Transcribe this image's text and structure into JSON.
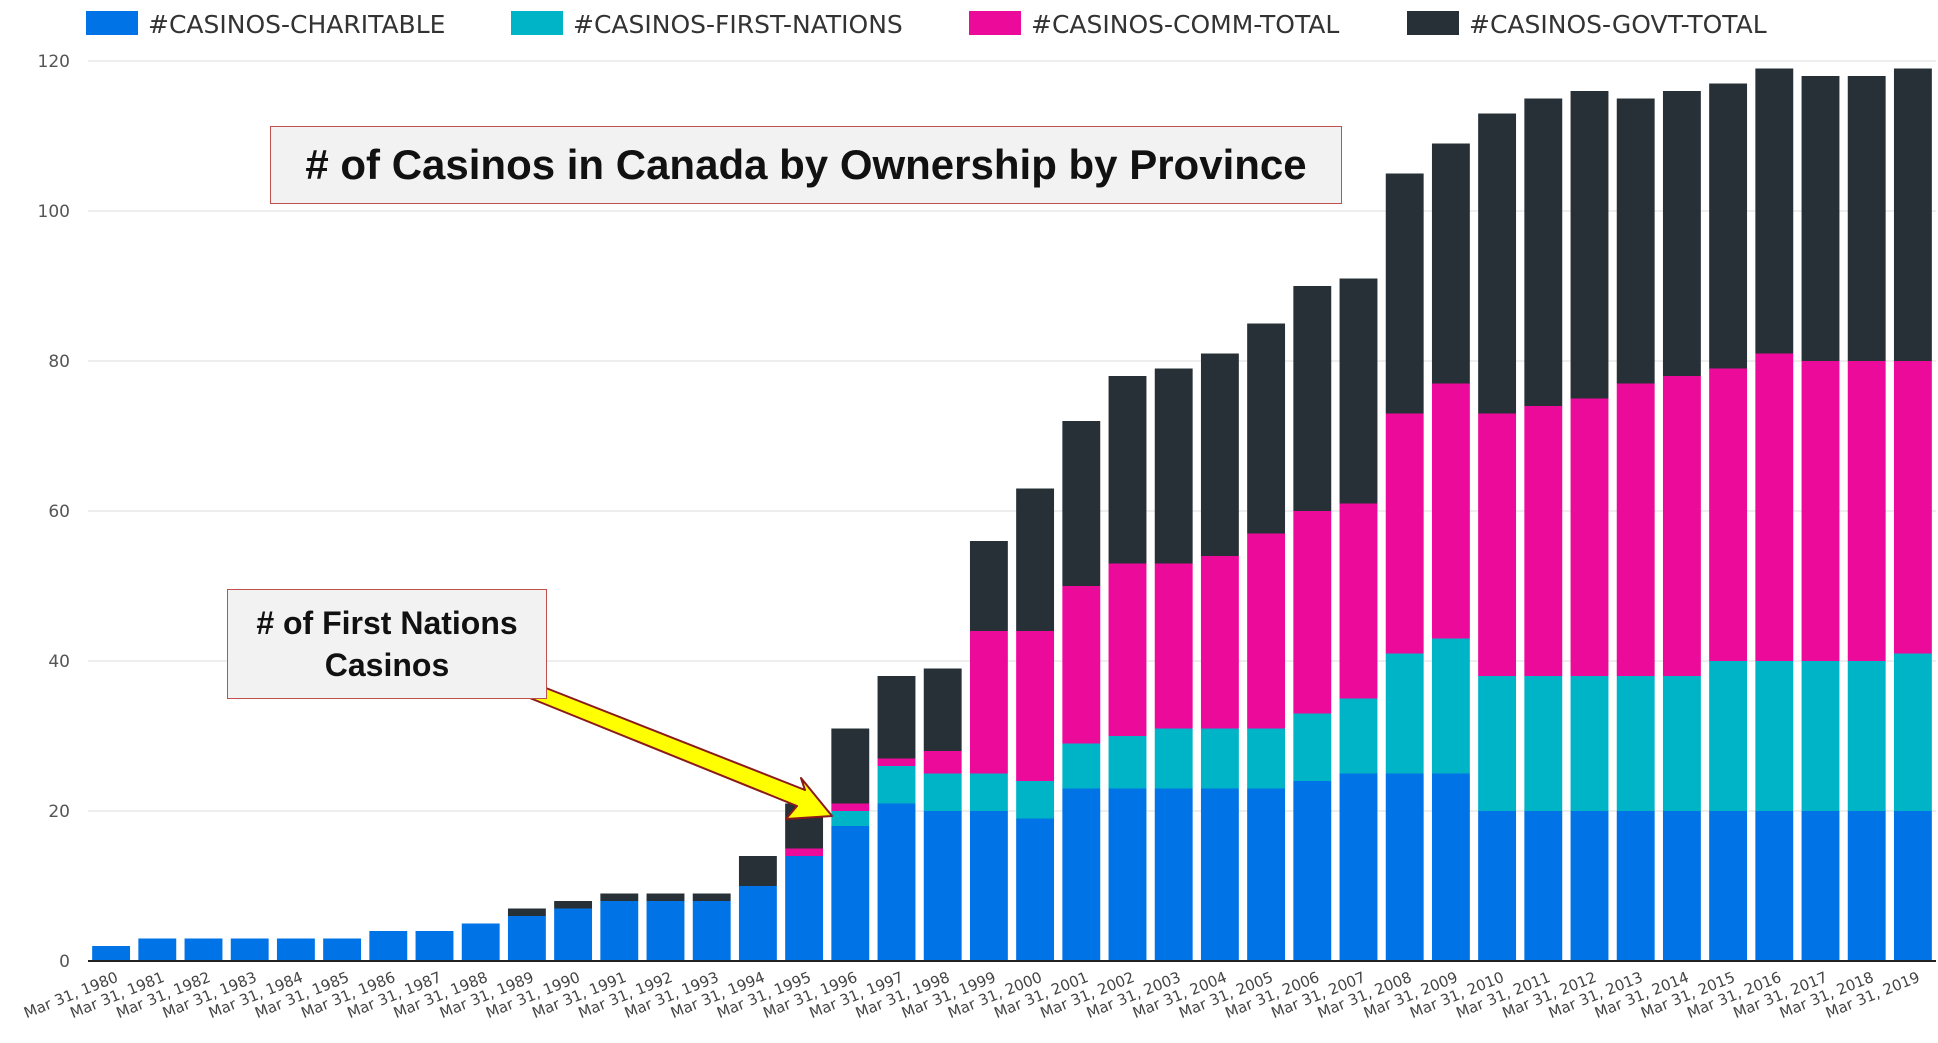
{
  "chart_data": {
    "type": "bar",
    "stacked": true,
    "title": "# of Casinos in Canada by Ownership by Province",
    "annotation": "# of First Nations Casinos",
    "ylim": [
      0,
      120
    ],
    "yticks": [
      0,
      20,
      40,
      60,
      80,
      100,
      120
    ],
    "grid": true,
    "legend": "top-left",
    "categories": [
      "Mar 31, 1980",
      "Mar 31, 1981",
      "Mar 31, 1982",
      "Mar 31, 1983",
      "Mar 31, 1984",
      "Mar 31, 1985",
      "Mar 31, 1986",
      "Mar 31, 1987",
      "Mar 31, 1988",
      "Mar 31, 1989",
      "Mar 31, 1990",
      "Mar 31, 1991",
      "Mar 31, 1992",
      "Mar 31, 1993",
      "Mar 31, 1994",
      "Mar 31, 1995",
      "Mar 31, 1996",
      "Mar 31, 1997",
      "Mar 31, 1998",
      "Mar 31, 1999",
      "Mar 31, 2000",
      "Mar 31, 2001",
      "Mar 31, 2002",
      "Mar 31, 2003",
      "Mar 31, 2004",
      "Mar 31, 2005",
      "Mar 31, 2006",
      "Mar 31, 2007",
      "Mar 31, 2008",
      "Mar 31, 2009",
      "Mar 31, 2010",
      "Mar 31, 2011",
      "Mar 31, 2012",
      "Mar 31, 2013",
      "Mar 31, 2014",
      "Mar 31, 2015",
      "Mar 31, 2016",
      "Mar 31, 2017",
      "Mar 31, 2018",
      "Mar 31, 2019"
    ],
    "series": [
      {
        "name": "#CASINOS-CHARITABLE",
        "color": "#0073e6",
        "values": [
          2,
          3,
          3,
          3,
          3,
          3,
          4,
          4,
          5,
          6,
          7,
          8,
          8,
          8,
          10,
          14,
          18,
          21,
          20,
          20,
          19,
          23,
          23,
          23,
          23,
          23,
          24,
          25,
          25,
          25,
          20,
          20,
          20,
          20,
          20,
          20,
          20,
          20,
          20,
          20
        ]
      },
      {
        "name": "#CASINOS-FIRST-NATIONS",
        "color": "#00b4c8",
        "values": [
          0,
          0,
          0,
          0,
          0,
          0,
          0,
          0,
          0,
          0,
          0,
          0,
          0,
          0,
          0,
          0,
          2,
          5,
          5,
          5,
          5,
          6,
          7,
          8,
          8,
          8,
          9,
          10,
          16,
          18,
          18,
          18,
          18,
          18,
          18,
          20,
          20,
          20,
          20,
          21
        ]
      },
      {
        "name": "#CASINOS-COMM-TOTAL",
        "color": "#ec0a9b",
        "values": [
          0,
          0,
          0,
          0,
          0,
          0,
          0,
          0,
          0,
          0,
          0,
          0,
          0,
          0,
          0,
          1,
          1,
          1,
          3,
          19,
          20,
          21,
          23,
          22,
          23,
          26,
          27,
          26,
          32,
          34,
          35,
          36,
          37,
          39,
          40,
          39,
          41,
          40,
          40,
          39
        ]
      },
      {
        "name": "#CASINOS-GOVT-TOTAL",
        "color": "#273036",
        "values": [
          0,
          0,
          0,
          0,
          0,
          0,
          0,
          0,
          0,
          1,
          1,
          1,
          1,
          1,
          4,
          6,
          10,
          11,
          11,
          12,
          19,
          22,
          25,
          26,
          27,
          28,
          30,
          30,
          32,
          32,
          40,
          41,
          41,
          38,
          38,
          38,
          38,
          38,
          38,
          39
        ]
      }
    ]
  }
}
